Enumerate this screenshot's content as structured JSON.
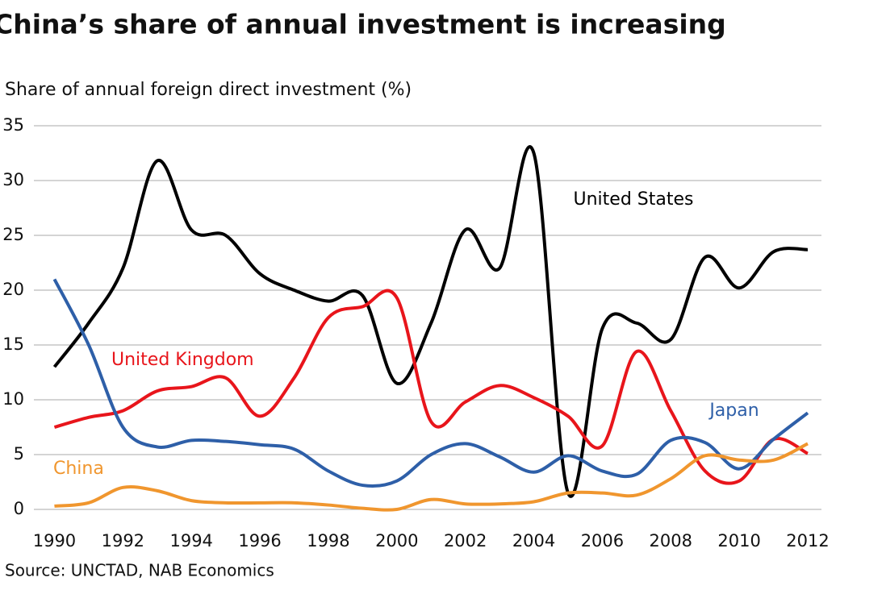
{
  "chart_data": {
    "type": "line",
    "title": "China’s share of annual investment is increasing",
    "y_label": "Share of annual foreign direct investment (%)",
    "source": "Source: UNCTAD, NAB Economics",
    "x": [
      1990,
      1991,
      1992,
      1993,
      1994,
      1995,
      1996,
      1997,
      1998,
      1999,
      2000,
      2001,
      2002,
      2003,
      2004,
      2005,
      2006,
      2007,
      2008,
      2009,
      2010,
      2011,
      2012
    ],
    "series": [
      {
        "name": "United States",
        "color": "#000000",
        "values": [
          13,
          17,
          22,
          31.8,
          25.5,
          25,
          21.5,
          20,
          19,
          19.5,
          11.5,
          17,
          25.5,
          22,
          32.5,
          1.5,
          16.5,
          17,
          15.5,
          23,
          20.2,
          23.5,
          23.7
        ]
      },
      {
        "name": "United Kingdom",
        "color": "#e8151b",
        "values": [
          7.5,
          8.4,
          9,
          10.8,
          11.2,
          12,
          8.5,
          12,
          17.5,
          18.5,
          19.3,
          8,
          9.8,
          11.3,
          10.2,
          8.5,
          5.8,
          14.4,
          9,
          3.5,
          2.6,
          6.4,
          5.1
        ]
      },
      {
        "name": "Japan",
        "color": "#2e5fa8",
        "values": [
          21,
          15,
          7.5,
          5.7,
          6.3,
          6.2,
          5.9,
          5.5,
          3.5,
          2.2,
          2.6,
          5,
          6,
          4.8,
          3.4,
          4.9,
          3.5,
          3.2,
          6.3,
          6.1,
          3.7,
          6.4,
          8.8
        ]
      },
      {
        "name": "China",
        "color": "#f0962e",
        "values": [
          0.3,
          0.6,
          2,
          1.7,
          0.8,
          0.6,
          0.6,
          0.6,
          0.4,
          0.1,
          0,
          0.9,
          0.5,
          0.5,
          0.7,
          1.5,
          1.5,
          1.3,
          2.8,
          4.9,
          4.5,
          4.5,
          6
        ]
      }
    ],
    "xlim": [
      1989.4,
      2012.4
    ],
    "xticks": [
      1990,
      1992,
      1994,
      1996,
      1998,
      2000,
      2002,
      2004,
      2006,
      2008,
      2010,
      2012
    ],
    "ylim": [
      0,
      35
    ],
    "yticks": [
      0,
      5,
      10,
      15,
      20,
      25,
      30,
      35
    ],
    "grid": true
  }
}
